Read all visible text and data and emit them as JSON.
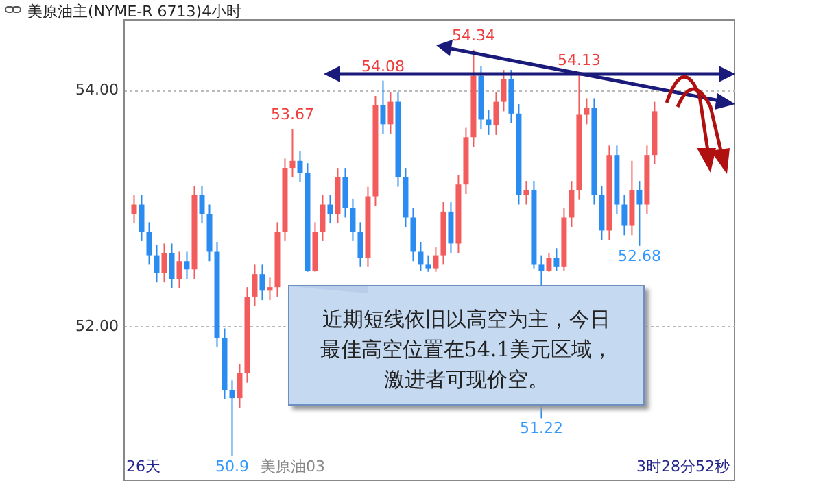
{
  "chart_data": {
    "type": "candlestick",
    "title": "美原油主(NYME-R 6713)4小时",
    "categories": [
      null,
      null,
      null,
      null,
      null,
      null,
      null,
      null,
      null,
      null,
      null,
      null,
      null,
      null,
      null,
      null,
      null,
      null,
      null,
      null,
      null,
      null,
      null,
      null,
      null,
      null,
      null,
      null,
      null,
      null,
      null,
      null,
      null,
      null,
      null,
      null,
      null,
      null,
      null,
      null,
      null,
      null,
      null,
      null,
      null,
      null,
      null,
      null,
      null,
      null,
      null,
      null,
      null,
      null,
      null,
      null,
      null,
      null,
      null,
      null,
      null,
      null,
      null,
      null,
      null,
      null,
      null,
      null,
      null,
      null
    ],
    "ohlc": [
      [
        52.95,
        53.11,
        52.87,
        53.03
      ],
      [
        53.03,
        53.11,
        52.72,
        52.8
      ],
      [
        52.8,
        52.88,
        52.52,
        52.6
      ],
      [
        52.6,
        52.69,
        52.37,
        52.45
      ],
      [
        52.45,
        52.7,
        52.37,
        52.62
      ],
      [
        52.62,
        52.7,
        52.32,
        52.4
      ],
      [
        52.4,
        52.63,
        52.32,
        52.55
      ],
      [
        52.55,
        52.63,
        52.4,
        52.48
      ],
      [
        52.48,
        53.19,
        52.4,
        53.11
      ],
      [
        53.11,
        53.19,
        52.87,
        52.95
      ],
      [
        52.95,
        53.03,
        52.55,
        52.63
      ],
      [
        52.63,
        52.71,
        51.82,
        51.9
      ],
      [
        51.9,
        51.98,
        51.38,
        51.46
      ],
      [
        51.46,
        51.54,
        50.9,
        51.39
      ],
      [
        51.39,
        51.68,
        51.31,
        51.6
      ],
      [
        51.6,
        52.33,
        51.52,
        52.25
      ],
      [
        52.25,
        52.52,
        52.17,
        52.44
      ],
      [
        52.44,
        52.52,
        52.22,
        52.3
      ],
      [
        52.3,
        52.41,
        52.22,
        52.33
      ],
      [
        52.33,
        52.88,
        52.25,
        52.8
      ],
      [
        52.8,
        53.42,
        52.72,
        53.34
      ],
      [
        53.34,
        53.67,
        53.26,
        53.4
      ],
      [
        53.4,
        53.48,
        53.22,
        53.3
      ],
      [
        53.3,
        53.38,
        52.46,
        52.47
      ],
      [
        52.47,
        52.88,
        52.46,
        52.8
      ],
      [
        52.8,
        53.11,
        52.72,
        53.03
      ],
      [
        53.03,
        53.11,
        52.87,
        52.95
      ],
      [
        52.95,
        53.34,
        52.87,
        53.26
      ],
      [
        53.26,
        53.34,
        52.92,
        53.0
      ],
      [
        53.0,
        53.08,
        52.72,
        52.8
      ],
      [
        52.8,
        52.88,
        52.5,
        52.58
      ],
      [
        52.58,
        53.18,
        52.5,
        53.1
      ],
      [
        53.1,
        53.95,
        53.02,
        53.87
      ],
      [
        53.87,
        54.08,
        53.63,
        53.71
      ],
      [
        53.71,
        53.98,
        53.63,
        53.9
      ],
      [
        53.9,
        53.98,
        53.18,
        53.26
      ],
      [
        53.26,
        53.34,
        52.84,
        52.92
      ],
      [
        52.92,
        53.0,
        52.55,
        52.63
      ],
      [
        52.63,
        52.71,
        52.47,
        52.52
      ],
      [
        52.52,
        52.6,
        52.46,
        52.49
      ],
      [
        52.49,
        52.67,
        52.46,
        52.6
      ],
      [
        52.6,
        53.05,
        52.52,
        52.97
      ],
      [
        52.97,
        53.05,
        52.62,
        52.7
      ],
      [
        52.7,
        53.28,
        52.62,
        53.2
      ],
      [
        53.2,
        53.68,
        53.12,
        53.6
      ],
      [
        53.6,
        54.34,
        53.52,
        54.12
      ],
      [
        54.12,
        54.2,
        53.67,
        53.75
      ],
      [
        53.75,
        53.83,
        53.62,
        53.7
      ],
      [
        53.7,
        53.98,
        53.62,
        53.9
      ],
      [
        53.9,
        54.17,
        53.82,
        54.09
      ],
      [
        54.09,
        54.17,
        53.72,
        53.8
      ],
      [
        53.8,
        53.88,
        53.03,
        53.11
      ],
      [
        53.11,
        53.23,
        53.03,
        53.15
      ],
      [
        53.15,
        53.23,
        52.49,
        52.52
      ],
      [
        52.52,
        52.6,
        51.22,
        52.47
      ],
      [
        52.47,
        52.62,
        52.46,
        52.58
      ],
      [
        52.58,
        52.66,
        52.47,
        52.5
      ],
      [
        52.5,
        53.0,
        52.47,
        52.92
      ],
      [
        52.92,
        53.23,
        52.84,
        53.15
      ],
      [
        53.15,
        54.13,
        53.07,
        53.79
      ],
      [
        53.79,
        53.93,
        53.71,
        53.85
      ],
      [
        53.85,
        53.93,
        53.03,
        53.11
      ],
      [
        53.11,
        53.19,
        52.73,
        52.81
      ],
      [
        52.81,
        53.53,
        52.73,
        53.45
      ],
      [
        53.45,
        53.53,
        52.95,
        53.03
      ],
      [
        53.03,
        53.11,
        52.77,
        52.85
      ],
      [
        52.85,
        53.4,
        52.77,
        53.15
      ],
      [
        53.15,
        53.23,
        52.68,
        53.03
      ],
      [
        53.03,
        53.53,
        52.95,
        53.45
      ],
      [
        53.45,
        53.9,
        53.37,
        53.82
      ]
    ],
    "ylim": [
      50.7,
      54.6
    ],
    "yticks": [
      {
        "value": 52,
        "label": "52.00"
      },
      {
        "value": 54,
        "label": "54.00"
      }
    ],
    "grid": "y",
    "tick_labels": "y",
    "annotations": [
      {
        "text": "53.67",
        "y": 53.67
      },
      {
        "text": "54.08",
        "y": 54.08
      },
      {
        "text": "54.34",
        "y": 54.34
      },
      {
        "text": "54.13",
        "y": 54.13
      },
      {
        "text": "52.68",
        "y": 52.68
      },
      {
        "text": "51.22",
        "y": 51.22
      },
      {
        "text": "50.9",
        "y": 50.9
      },
      "26天",
      "美原油03",
      "3时28分52秒",
      "近期短线依旧以高空为主，今日最佳高空位置在54.1美元区域，激进者可现价空。"
    ]
  }
}
